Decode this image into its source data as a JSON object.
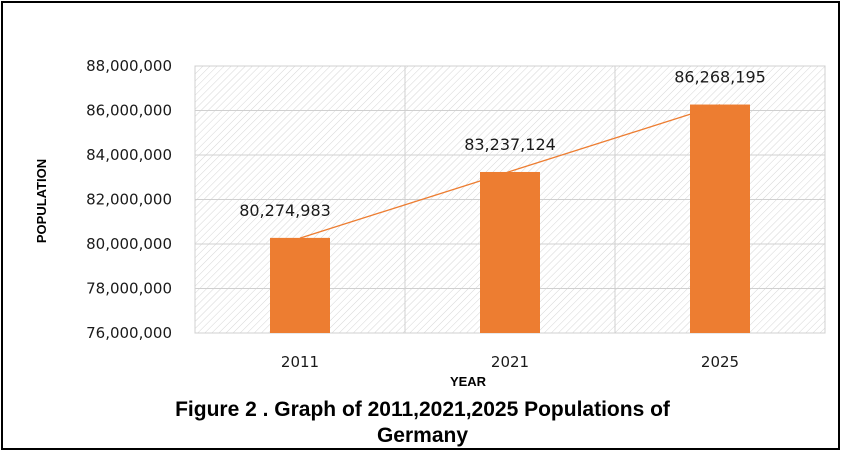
{
  "chart_data": {
    "type": "bar",
    "categories": [
      "2011",
      "2021",
      "2025"
    ],
    "values": [
      80274983,
      83237124,
      86268195
    ],
    "data_labels": [
      "80,274,983",
      "83,237,124",
      "86,268,195"
    ],
    "xlabel": "YEAR",
    "ylabel": "POPULATION",
    "ylim": [
      76000000,
      88000000
    ],
    "y_ticks": [
      76000000,
      78000000,
      80000000,
      82000000,
      84000000,
      86000000,
      88000000
    ],
    "y_tick_labels": [
      "76,000,000",
      "78,000,000",
      "80,000,000",
      "82,000,000",
      "84,000,000",
      "86,000,000",
      "88,000,000"
    ],
    "trendline": "linear",
    "grid": true,
    "bar_color": "#ED7D31",
    "trend_color": "#ED7D31"
  },
  "caption": {
    "line1": "Figure 2 .  Graph of 2011,2021,2025 Populations of",
    "line2": "Germany"
  }
}
